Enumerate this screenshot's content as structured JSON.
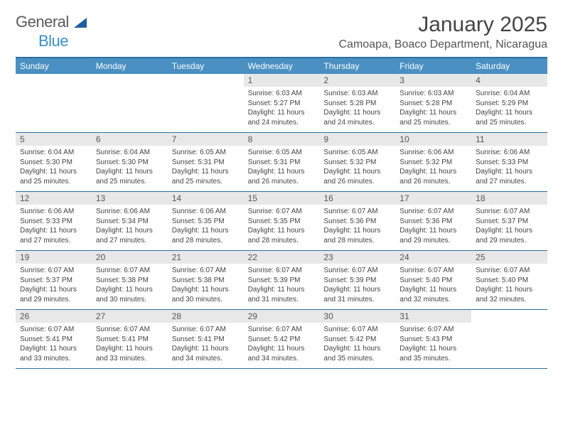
{
  "brand": {
    "name1": "General",
    "name2": "Blue"
  },
  "title": {
    "month": "January 2025",
    "location": "Camoapa, Boaco Department, Nicaragua"
  },
  "colors": {
    "header_bar": "#4a90c2",
    "header_border": "#2a6fa5",
    "daynum_bg": "#e8e8e8",
    "text": "#444444",
    "brand_gray": "#5a5a5a",
    "brand_blue": "#3a8fc8"
  },
  "day_names": [
    "Sunday",
    "Monday",
    "Tuesday",
    "Wednesday",
    "Thursday",
    "Friday",
    "Saturday"
  ],
  "first_weekday_index": 3,
  "days": [
    {
      "n": "1",
      "sr": "6:03 AM",
      "ss": "5:27 PM",
      "dl": "11 hours and 24 minutes."
    },
    {
      "n": "2",
      "sr": "6:03 AM",
      "ss": "5:28 PM",
      "dl": "11 hours and 24 minutes."
    },
    {
      "n": "3",
      "sr": "6:03 AM",
      "ss": "5:28 PM",
      "dl": "11 hours and 25 minutes."
    },
    {
      "n": "4",
      "sr": "6:04 AM",
      "ss": "5:29 PM",
      "dl": "11 hours and 25 minutes."
    },
    {
      "n": "5",
      "sr": "6:04 AM",
      "ss": "5:30 PM",
      "dl": "11 hours and 25 minutes."
    },
    {
      "n": "6",
      "sr": "6:04 AM",
      "ss": "5:30 PM",
      "dl": "11 hours and 25 minutes."
    },
    {
      "n": "7",
      "sr": "6:05 AM",
      "ss": "5:31 PM",
      "dl": "11 hours and 25 minutes."
    },
    {
      "n": "8",
      "sr": "6:05 AM",
      "ss": "5:31 PM",
      "dl": "11 hours and 26 minutes."
    },
    {
      "n": "9",
      "sr": "6:05 AM",
      "ss": "5:32 PM",
      "dl": "11 hours and 26 minutes."
    },
    {
      "n": "10",
      "sr": "6:06 AM",
      "ss": "5:32 PM",
      "dl": "11 hours and 26 minutes."
    },
    {
      "n": "11",
      "sr": "6:06 AM",
      "ss": "5:33 PM",
      "dl": "11 hours and 27 minutes."
    },
    {
      "n": "12",
      "sr": "6:06 AM",
      "ss": "5:33 PM",
      "dl": "11 hours and 27 minutes."
    },
    {
      "n": "13",
      "sr": "6:06 AM",
      "ss": "5:34 PM",
      "dl": "11 hours and 27 minutes."
    },
    {
      "n": "14",
      "sr": "6:06 AM",
      "ss": "5:35 PM",
      "dl": "11 hours and 28 minutes."
    },
    {
      "n": "15",
      "sr": "6:07 AM",
      "ss": "5:35 PM",
      "dl": "11 hours and 28 minutes."
    },
    {
      "n": "16",
      "sr": "6:07 AM",
      "ss": "5:36 PM",
      "dl": "11 hours and 28 minutes."
    },
    {
      "n": "17",
      "sr": "6:07 AM",
      "ss": "5:36 PM",
      "dl": "11 hours and 29 minutes."
    },
    {
      "n": "18",
      "sr": "6:07 AM",
      "ss": "5:37 PM",
      "dl": "11 hours and 29 minutes."
    },
    {
      "n": "19",
      "sr": "6:07 AM",
      "ss": "5:37 PM",
      "dl": "11 hours and 29 minutes."
    },
    {
      "n": "20",
      "sr": "6:07 AM",
      "ss": "5:38 PM",
      "dl": "11 hours and 30 minutes."
    },
    {
      "n": "21",
      "sr": "6:07 AM",
      "ss": "5:38 PM",
      "dl": "11 hours and 30 minutes."
    },
    {
      "n": "22",
      "sr": "6:07 AM",
      "ss": "5:39 PM",
      "dl": "11 hours and 31 minutes."
    },
    {
      "n": "23",
      "sr": "6:07 AM",
      "ss": "5:39 PM",
      "dl": "11 hours and 31 minutes."
    },
    {
      "n": "24",
      "sr": "6:07 AM",
      "ss": "5:40 PM",
      "dl": "11 hours and 32 minutes."
    },
    {
      "n": "25",
      "sr": "6:07 AM",
      "ss": "5:40 PM",
      "dl": "11 hours and 32 minutes."
    },
    {
      "n": "26",
      "sr": "6:07 AM",
      "ss": "5:41 PM",
      "dl": "11 hours and 33 minutes."
    },
    {
      "n": "27",
      "sr": "6:07 AM",
      "ss": "5:41 PM",
      "dl": "11 hours and 33 minutes."
    },
    {
      "n": "28",
      "sr": "6:07 AM",
      "ss": "5:41 PM",
      "dl": "11 hours and 34 minutes."
    },
    {
      "n": "29",
      "sr": "6:07 AM",
      "ss": "5:42 PM",
      "dl": "11 hours and 34 minutes."
    },
    {
      "n": "30",
      "sr": "6:07 AM",
      "ss": "5:42 PM",
      "dl": "11 hours and 35 minutes."
    },
    {
      "n": "31",
      "sr": "6:07 AM",
      "ss": "5:43 PM",
      "dl": "11 hours and 35 minutes."
    }
  ],
  "labels": {
    "sunrise": "Sunrise:",
    "sunset": "Sunset:",
    "daylight": "Daylight:"
  }
}
